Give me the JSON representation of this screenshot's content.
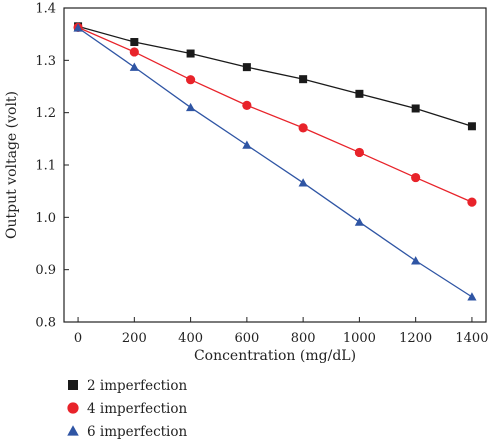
{
  "chart_data": {
    "type": "line",
    "xlabel": "Concentration (mg/dL)",
    "ylabel": "Output voltage (volt)",
    "xlim": [
      -50,
      1450
    ],
    "ylim": [
      0.8,
      1.4
    ],
    "xticks": [
      0,
      200,
      400,
      600,
      800,
      1000,
      1200,
      1400
    ],
    "yticks": [
      0.8,
      0.9,
      1.0,
      1.1,
      1.2,
      1.3,
      1.4
    ],
    "grid": false,
    "legend_position": "bottom-left, below plot",
    "x": [
      0,
      200,
      400,
      600,
      800,
      1000,
      1200,
      1400
    ],
    "series": [
      {
        "name": "2 imperfection",
        "marker": "square",
        "color": "#1a1a1a",
        "values": [
          1.365,
          1.335,
          1.313,
          1.287,
          1.264,
          1.236,
          1.208,
          1.174
        ]
      },
      {
        "name": "4 imperfection",
        "marker": "circle",
        "color": "#e8232a",
        "values": [
          1.363,
          1.316,
          1.263,
          1.214,
          1.171,
          1.124,
          1.076,
          1.029
        ]
      },
      {
        "name": "6 imperfection",
        "marker": "triangle",
        "color": "#2f55a4",
        "values": [
          1.362,
          1.287,
          1.21,
          1.138,
          1.066,
          0.991,
          0.917,
          0.848
        ]
      }
    ]
  }
}
